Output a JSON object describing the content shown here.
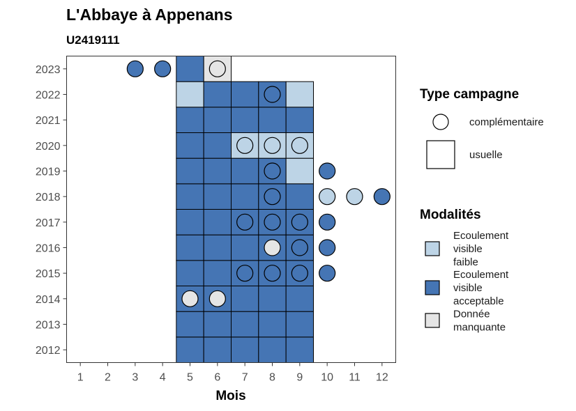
{
  "chart_data": {
    "type": "heatmap",
    "title": "L'Abbaye à Appenans",
    "subtitle": "U2419111",
    "xlabel": "Mois",
    "ylabel": "",
    "x_ticks": [
      1,
      2,
      3,
      4,
      5,
      6,
      7,
      8,
      9,
      10,
      11,
      12
    ],
    "y_ticks": [
      2012,
      2013,
      2014,
      2015,
      2016,
      2017,
      2018,
      2019,
      2020,
      2021,
      2022,
      2023
    ],
    "xlim": [
      0.5,
      12.5
    ],
    "ylim": [
      2011.5,
      2023.5
    ],
    "colors": {
      "Ecoulement visible faible": "#bdd4e6",
      "Ecoulement visible acceptable": "#4575b4",
      "Donnée manquante": "#e5e5e5"
    },
    "legend_type": {
      "title": "Type campagne",
      "entries": [
        {
          "label": "complémentaire",
          "shape": "circle"
        },
        {
          "label": "usuelle",
          "shape": "square"
        }
      ]
    },
    "legend_modalites": {
      "title": "Modalités",
      "entries": [
        {
          "label_lines": [
            "Ecoulement",
            "visible",
            "faible"
          ],
          "key": "Ecoulement visible faible"
        },
        {
          "label_lines": [
            "Ecoulement",
            "visible",
            "acceptable"
          ],
          "key": "Ecoulement visible acceptable"
        },
        {
          "label_lines": [
            "Donnée",
            "manquante"
          ],
          "key": "Donnée manquante"
        }
      ]
    },
    "points": [
      {
        "year": 2012,
        "month": 5,
        "type": "usuelle",
        "modalite": "Ecoulement visible acceptable"
      },
      {
        "year": 2012,
        "month": 6,
        "type": "usuelle",
        "modalite": "Ecoulement visible acceptable"
      },
      {
        "year": 2012,
        "month": 7,
        "type": "usuelle",
        "modalite": "Ecoulement visible acceptable"
      },
      {
        "year": 2012,
        "month": 8,
        "type": "usuelle",
        "modalite": "Ecoulement visible acceptable"
      },
      {
        "year": 2012,
        "month": 9,
        "type": "usuelle",
        "modalite": "Ecoulement visible acceptable"
      },
      {
        "year": 2013,
        "month": 5,
        "type": "usuelle",
        "modalite": "Ecoulement visible acceptable"
      },
      {
        "year": 2013,
        "month": 6,
        "type": "usuelle",
        "modalite": "Ecoulement visible acceptable"
      },
      {
        "year": 2013,
        "month": 7,
        "type": "usuelle",
        "modalite": "Ecoulement visible acceptable"
      },
      {
        "year": 2013,
        "month": 8,
        "type": "usuelle",
        "modalite": "Ecoulement visible acceptable"
      },
      {
        "year": 2013,
        "month": 9,
        "type": "usuelle",
        "modalite": "Ecoulement visible acceptable"
      },
      {
        "year": 2014,
        "month": 5,
        "type": "usuelle",
        "modalite": "Ecoulement visible acceptable"
      },
      {
        "year": 2014,
        "month": 6,
        "type": "usuelle",
        "modalite": "Ecoulement visible acceptable"
      },
      {
        "year": 2014,
        "month": 7,
        "type": "usuelle",
        "modalite": "Ecoulement visible acceptable"
      },
      {
        "year": 2014,
        "month": 8,
        "type": "usuelle",
        "modalite": "Ecoulement visible acceptable"
      },
      {
        "year": 2014,
        "month": 9,
        "type": "usuelle",
        "modalite": "Ecoulement visible acceptable"
      },
      {
        "year": 2014,
        "month": 5,
        "type": "complémentaire",
        "modalite": "Donnée manquante"
      },
      {
        "year": 2014,
        "month": 6,
        "type": "complémentaire",
        "modalite": "Donnée manquante"
      },
      {
        "year": 2015,
        "month": 5,
        "type": "usuelle",
        "modalite": "Ecoulement visible acceptable"
      },
      {
        "year": 2015,
        "month": 6,
        "type": "usuelle",
        "modalite": "Ecoulement visible acceptable"
      },
      {
        "year": 2015,
        "month": 7,
        "type": "usuelle",
        "modalite": "Ecoulement visible acceptable"
      },
      {
        "year": 2015,
        "month": 8,
        "type": "usuelle",
        "modalite": "Ecoulement visible acceptable"
      },
      {
        "year": 2015,
        "month": 9,
        "type": "usuelle",
        "modalite": "Ecoulement visible acceptable"
      },
      {
        "year": 2015,
        "month": 7,
        "type": "complémentaire",
        "modalite": "Ecoulement visible acceptable"
      },
      {
        "year": 2015,
        "month": 8,
        "type": "complémentaire",
        "modalite": "Ecoulement visible acceptable"
      },
      {
        "year": 2015,
        "month": 9,
        "type": "complémentaire",
        "modalite": "Ecoulement visible acceptable"
      },
      {
        "year": 2015,
        "month": 10,
        "type": "complémentaire",
        "modalite": "Ecoulement visible acceptable"
      },
      {
        "year": 2016,
        "month": 5,
        "type": "usuelle",
        "modalite": "Ecoulement visible acceptable"
      },
      {
        "year": 2016,
        "month": 6,
        "type": "usuelle",
        "modalite": "Ecoulement visible acceptable"
      },
      {
        "year": 2016,
        "month": 7,
        "type": "usuelle",
        "modalite": "Ecoulement visible acceptable"
      },
      {
        "year": 2016,
        "month": 8,
        "type": "usuelle",
        "modalite": "Ecoulement visible acceptable"
      },
      {
        "year": 2016,
        "month": 9,
        "type": "usuelle",
        "modalite": "Ecoulement visible acceptable"
      },
      {
        "year": 2016,
        "month": 8,
        "type": "complémentaire",
        "modalite": "Donnée manquante"
      },
      {
        "year": 2016,
        "month": 9,
        "type": "complémentaire",
        "modalite": "Ecoulement visible acceptable"
      },
      {
        "year": 2016,
        "month": 10,
        "type": "complémentaire",
        "modalite": "Ecoulement visible acceptable"
      },
      {
        "year": 2017,
        "month": 5,
        "type": "usuelle",
        "modalite": "Ecoulement visible acceptable"
      },
      {
        "year": 2017,
        "month": 6,
        "type": "usuelle",
        "modalite": "Ecoulement visible acceptable"
      },
      {
        "year": 2017,
        "month": 7,
        "type": "usuelle",
        "modalite": "Ecoulement visible acceptable"
      },
      {
        "year": 2017,
        "month": 8,
        "type": "usuelle",
        "modalite": "Ecoulement visible acceptable"
      },
      {
        "year": 2017,
        "month": 9,
        "type": "usuelle",
        "modalite": "Ecoulement visible acceptable"
      },
      {
        "year": 2017,
        "month": 7,
        "type": "complémentaire",
        "modalite": "Ecoulement visible acceptable"
      },
      {
        "year": 2017,
        "month": 8,
        "type": "complémentaire",
        "modalite": "Ecoulement visible acceptable"
      },
      {
        "year": 2017,
        "month": 9,
        "type": "complémentaire",
        "modalite": "Ecoulement visible acceptable"
      },
      {
        "year": 2017,
        "month": 10,
        "type": "complémentaire",
        "modalite": "Ecoulement visible acceptable"
      },
      {
        "year": 2018,
        "month": 5,
        "type": "usuelle",
        "modalite": "Ecoulement visible acceptable"
      },
      {
        "year": 2018,
        "month": 6,
        "type": "usuelle",
        "modalite": "Ecoulement visible acceptable"
      },
      {
        "year": 2018,
        "month": 7,
        "type": "usuelle",
        "modalite": "Ecoulement visible acceptable"
      },
      {
        "year": 2018,
        "month": 8,
        "type": "usuelle",
        "modalite": "Ecoulement visible acceptable"
      },
      {
        "year": 2018,
        "month": 9,
        "type": "usuelle",
        "modalite": "Ecoulement visible acceptable"
      },
      {
        "year": 2018,
        "month": 8,
        "type": "complémentaire",
        "modalite": "Ecoulement visible acceptable"
      },
      {
        "year": 2018,
        "month": 10,
        "type": "complémentaire",
        "modalite": "Ecoulement visible faible"
      },
      {
        "year": 2018,
        "month": 11,
        "type": "complémentaire",
        "modalite": "Ecoulement visible faible"
      },
      {
        "year": 2018,
        "month": 12,
        "type": "complémentaire",
        "modalite": "Ecoulement visible acceptable"
      },
      {
        "year": 2019,
        "month": 5,
        "type": "usuelle",
        "modalite": "Ecoulement visible acceptable"
      },
      {
        "year": 2019,
        "month": 6,
        "type": "usuelle",
        "modalite": "Ecoulement visible acceptable"
      },
      {
        "year": 2019,
        "month": 7,
        "type": "usuelle",
        "modalite": "Ecoulement visible acceptable"
      },
      {
        "year": 2019,
        "month": 8,
        "type": "usuelle",
        "modalite": "Ecoulement visible acceptable"
      },
      {
        "year": 2019,
        "month": 9,
        "type": "usuelle",
        "modalite": "Ecoulement visible faible"
      },
      {
        "year": 2019,
        "month": 8,
        "type": "complémentaire",
        "modalite": "Ecoulement visible acceptable"
      },
      {
        "year": 2019,
        "month": 10,
        "type": "complémentaire",
        "modalite": "Ecoulement visible acceptable"
      },
      {
        "year": 2020,
        "month": 5,
        "type": "usuelle",
        "modalite": "Ecoulement visible acceptable"
      },
      {
        "year": 2020,
        "month": 6,
        "type": "usuelle",
        "modalite": "Ecoulement visible acceptable"
      },
      {
        "year": 2020,
        "month": 7,
        "type": "usuelle",
        "modalite": "Ecoulement visible faible"
      },
      {
        "year": 2020,
        "month": 8,
        "type": "usuelle",
        "modalite": "Ecoulement visible faible"
      },
      {
        "year": 2020,
        "month": 9,
        "type": "usuelle",
        "modalite": "Ecoulement visible faible"
      },
      {
        "year": 2020,
        "month": 7,
        "type": "complémentaire",
        "modalite": "Ecoulement visible faible"
      },
      {
        "year": 2020,
        "month": 8,
        "type": "complémentaire",
        "modalite": "Ecoulement visible faible"
      },
      {
        "year": 2020,
        "month": 9,
        "type": "complémentaire",
        "modalite": "Ecoulement visible faible"
      },
      {
        "year": 2021,
        "month": 5,
        "type": "usuelle",
        "modalite": "Ecoulement visible acceptable"
      },
      {
        "year": 2021,
        "month": 6,
        "type": "usuelle",
        "modalite": "Ecoulement visible acceptable"
      },
      {
        "year": 2021,
        "month": 7,
        "type": "usuelle",
        "modalite": "Ecoulement visible acceptable"
      },
      {
        "year": 2021,
        "month": 8,
        "type": "usuelle",
        "modalite": "Ecoulement visible acceptable"
      },
      {
        "year": 2021,
        "month": 9,
        "type": "usuelle",
        "modalite": "Ecoulement visible acceptable"
      },
      {
        "year": 2022,
        "month": 5,
        "type": "usuelle",
        "modalite": "Ecoulement visible faible"
      },
      {
        "year": 2022,
        "month": 6,
        "type": "usuelle",
        "modalite": "Ecoulement visible acceptable"
      },
      {
        "year": 2022,
        "month": 7,
        "type": "usuelle",
        "modalite": "Ecoulement visible acceptable"
      },
      {
        "year": 2022,
        "month": 8,
        "type": "usuelle",
        "modalite": "Ecoulement visible acceptable"
      },
      {
        "year": 2022,
        "month": 9,
        "type": "usuelle",
        "modalite": "Ecoulement visible faible"
      },
      {
        "year": 2022,
        "month": 8,
        "type": "complémentaire",
        "modalite": "Ecoulement visible acceptable"
      },
      {
        "year": 2023,
        "month": 5,
        "type": "usuelle",
        "modalite": "Ecoulement visible acceptable"
      },
      {
        "year": 2023,
        "month": 6,
        "type": "usuelle",
        "modalite": "Donnée manquante"
      },
      {
        "year": 2023,
        "month": 3,
        "type": "complémentaire",
        "modalite": "Ecoulement visible acceptable"
      },
      {
        "year": 2023,
        "month": 4,
        "type": "complémentaire",
        "modalite": "Ecoulement visible acceptable"
      },
      {
        "year": 2023,
        "month": 6,
        "type": "complémentaire",
        "modalite": "Donnée manquante"
      }
    ]
  }
}
